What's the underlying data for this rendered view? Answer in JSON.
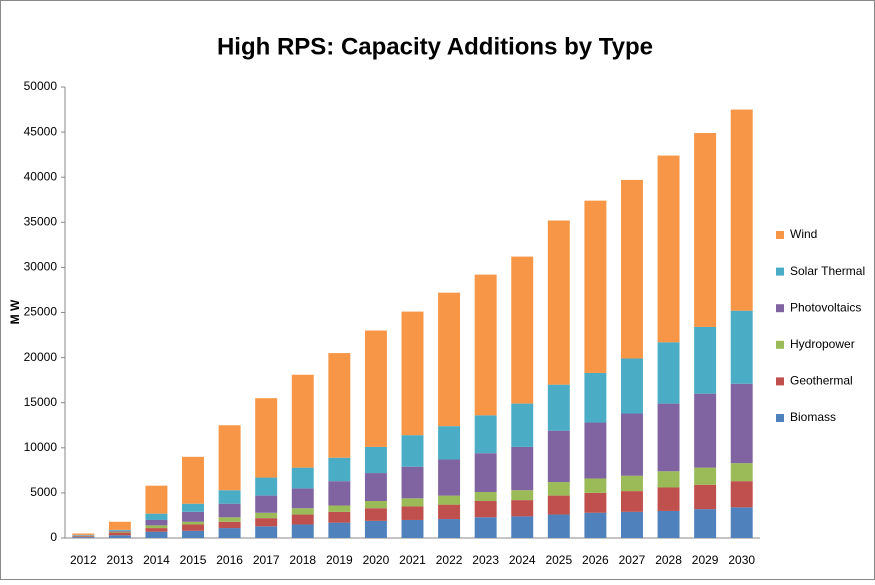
{
  "chart_data": {
    "type": "stacked-bar",
    "title": "High RPS: Capacity Additions by Type",
    "y_label": "M W",
    "categories": [
      "2012",
      "2013",
      "2014",
      "2015",
      "2016",
      "2017",
      "2018",
      "2019",
      "2020",
      "2021",
      "2022",
      "2023",
      "2024",
      "2025",
      "2026",
      "2027",
      "2028",
      "2029",
      "2030"
    ],
    "series": [
      {
        "name": "Biomass",
        "color": "#4f81bd",
        "values": [
          100,
          300,
          700,
          800,
          1100,
          1300,
          1500,
          1700,
          1900,
          2000,
          2100,
          2300,
          2400,
          2600,
          2800,
          2900,
          3000,
          3200,
          3400
        ]
      },
      {
        "name": "Geothermal",
        "color": "#c0504d",
        "values": [
          100,
          300,
          400,
          700,
          700,
          900,
          1100,
          1200,
          1400,
          1500,
          1600,
          1800,
          1800,
          2100,
          2200,
          2300,
          2600,
          2700,
          2900
        ]
      },
      {
        "name": "Hydropower",
        "color": "#9bbb59",
        "values": [
          50,
          100,
          300,
          300,
          500,
          600,
          700,
          700,
          800,
          900,
          1000,
          1000,
          1100,
          1500,
          1600,
          1700,
          1800,
          1900,
          2000
        ]
      },
      {
        "name": "Photovoltaics",
        "color": "#8064a2",
        "values": [
          50,
          100,
          600,
          1100,
          1500,
          1900,
          2200,
          2700,
          3100,
          3500,
          4000,
          4300,
          4800,
          5700,
          6200,
          6900,
          7500,
          8200,
          8800
        ]
      },
      {
        "name": "Solar Thermal",
        "color": "#4bacc6",
        "values": [
          50,
          100,
          700,
          900,
          1500,
          2000,
          2300,
          2600,
          2900,
          3500,
          3700,
          4200,
          4800,
          5100,
          5500,
          6100,
          6800,
          7400,
          8100
        ]
      },
      {
        "name": "Wind",
        "color": "#f79646",
        "values": [
          150,
          900,
          3100,
          5200,
          7200,
          8800,
          10300,
          11600,
          12900,
          13700,
          14800,
          15600,
          16300,
          18200,
          19100,
          19800,
          20700,
          21500,
          22300
        ]
      }
    ],
    "ylim": [
      0,
      50000
    ],
    "yticks": [
      0,
      5000,
      10000,
      15000,
      20000,
      25000,
      30000,
      35000,
      40000,
      45000,
      50000
    ]
  }
}
